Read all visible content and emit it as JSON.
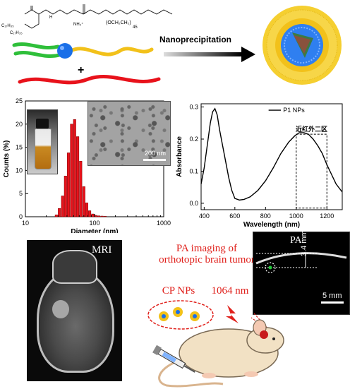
{
  "scheme": {
    "structure_labels": [
      "C₁₇H₃₅",
      "C₁₇H₃₅",
      "H",
      "NH₄⁺",
      "(OCH₂CH₂)",
      "45"
    ],
    "plus": "+",
    "arrow_label": "Nanoprecipitation"
  },
  "chart_data": [
    {
      "type": "bar",
      "xlabel": "Diameter (nm)",
      "ylabel": "Counts (%)",
      "xscale": "log",
      "xlim": [
        10,
        1000
      ],
      "ylim": [
        0,
        25
      ],
      "xticks": [
        "10",
        "100",
        "1000"
      ],
      "yticks": [
        "0",
        "5",
        "10",
        "15",
        "20",
        "25"
      ],
      "bar_color": "#e8121b",
      "bins": [
        {
          "x": 28,
          "value": 0.4
        },
        {
          "x": 31,
          "value": 1.8
        },
        {
          "x": 34.5,
          "value": 4.5
        },
        {
          "x": 38,
          "value": 8.8
        },
        {
          "x": 42,
          "value": 13.8
        },
        {
          "x": 46.5,
          "value": 20.0
        },
        {
          "x": 51.5,
          "value": 21.0
        },
        {
          "x": 57,
          "value": 17.3
        },
        {
          "x": 63,
          "value": 12.0
        },
        {
          "x": 70,
          "value": 6.5
        },
        {
          "x": 77,
          "value": 3.0
        },
        {
          "x": 85,
          "value": 1.3
        },
        {
          "x": 94,
          "value": 0.6
        },
        {
          "x": 104,
          "value": 0.3
        },
        {
          "x": 115,
          "value": 0.2
        },
        {
          "x": 128,
          "value": 0.15
        },
        {
          "x": 142,
          "value": 0.1
        }
      ],
      "inset_scale_label": "200 nm"
    },
    {
      "type": "line",
      "xlabel": "Wavelength (nm)",
      "ylabel": "Absorbance",
      "xlim": [
        380,
        1300
      ],
      "ylim": [
        -0.02,
        0.31
      ],
      "xticks": [
        "400",
        "600",
        "800",
        "1000",
        "1200"
      ],
      "yticks": [
        "0.0",
        "0.1",
        "0.2",
        "0.3"
      ],
      "series": [
        {
          "name": "P1 NPs",
          "x": [
            380,
            400,
            420,
            440,
            455,
            470,
            485,
            500,
            520,
            540,
            560,
            580,
            600,
            630,
            660,
            700,
            750,
            800,
            850,
            900,
            950,
            990,
            1020,
            1050,
            1080,
            1110,
            1140,
            1170,
            1200,
            1230,
            1260,
            1300
          ],
          "y": [
            0.06,
            0.11,
            0.18,
            0.25,
            0.285,
            0.295,
            0.275,
            0.23,
            0.18,
            0.13,
            0.08,
            0.04,
            0.015,
            0.01,
            0.012,
            0.02,
            0.04,
            0.07,
            0.11,
            0.155,
            0.19,
            0.21,
            0.22,
            0.22,
            0.215,
            0.2,
            0.18,
            0.155,
            0.12,
            0.09,
            0.06,
            0.035
          ]
        }
      ],
      "annotation": "近红外二区",
      "box_range": [
        1000,
        1200
      ]
    }
  ],
  "bottom": {
    "mri_label": "MRI",
    "pa_title": "PA imaging of orthotopic brain tumor",
    "pa_label": "PA",
    "depth_label": "3.4 mm",
    "scale_label": "5 mm",
    "cp_label": "CP NPs",
    "laser_label": "1064 nm"
  },
  "colors": {
    "accent_red": "#e0201b",
    "polymer_green": "#2fbf3a",
    "polymer_yellow": "#f2c11a",
    "polymer_red": "#e8121b",
    "core_blue": "#1a6fe8"
  }
}
